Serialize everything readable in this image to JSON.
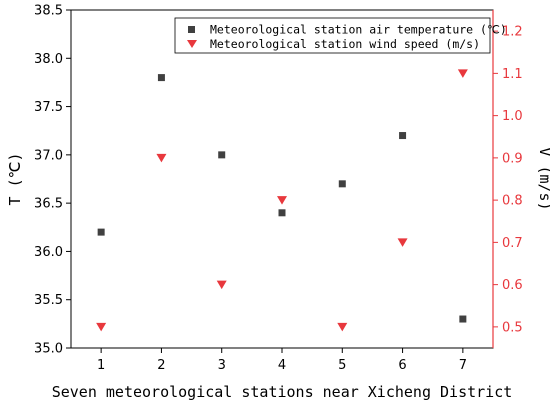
{
  "chart_data": {
    "type": "scatter",
    "x": [
      1,
      2,
      3,
      4,
      5,
      6,
      7
    ],
    "xlabel": "Seven meteorological stations near Xicheng District",
    "xlim": [
      0.5,
      7.5
    ],
    "x_ticks": [
      "1",
      "2",
      "3",
      "4",
      "5",
      "6",
      "7"
    ],
    "ylabel": "T (℃)",
    "ylim": [
      35.0,
      38.5
    ],
    "y_ticks": [
      "35.0",
      "35.5",
      "36.0",
      "36.5",
      "37.0",
      "37.5",
      "38.0",
      "38.5"
    ],
    "y2label": "V (m/s)",
    "y2lim": [
      0.45,
      1.25
    ],
    "y2_ticks": [
      "0.5",
      "0.6",
      "0.7",
      "0.8",
      "0.9",
      "1.0",
      "1.1",
      "1.2"
    ],
    "grid": false,
    "legend_position": "top-right",
    "series": [
      {
        "name": "Meteorological station air temperature (℃)",
        "axis": "left",
        "marker": "square",
        "color": "#404040",
        "values": [
          36.2,
          37.8,
          37.0,
          36.4,
          36.7,
          37.2,
          35.3
        ]
      },
      {
        "name": "Meteorological station wind speed (m/s)",
        "axis": "right",
        "marker": "triangle-down",
        "color": "#e8383d",
        "values": [
          0.5,
          0.9,
          0.6,
          0.8,
          0.5,
          0.7,
          1.1
        ]
      }
    ]
  }
}
